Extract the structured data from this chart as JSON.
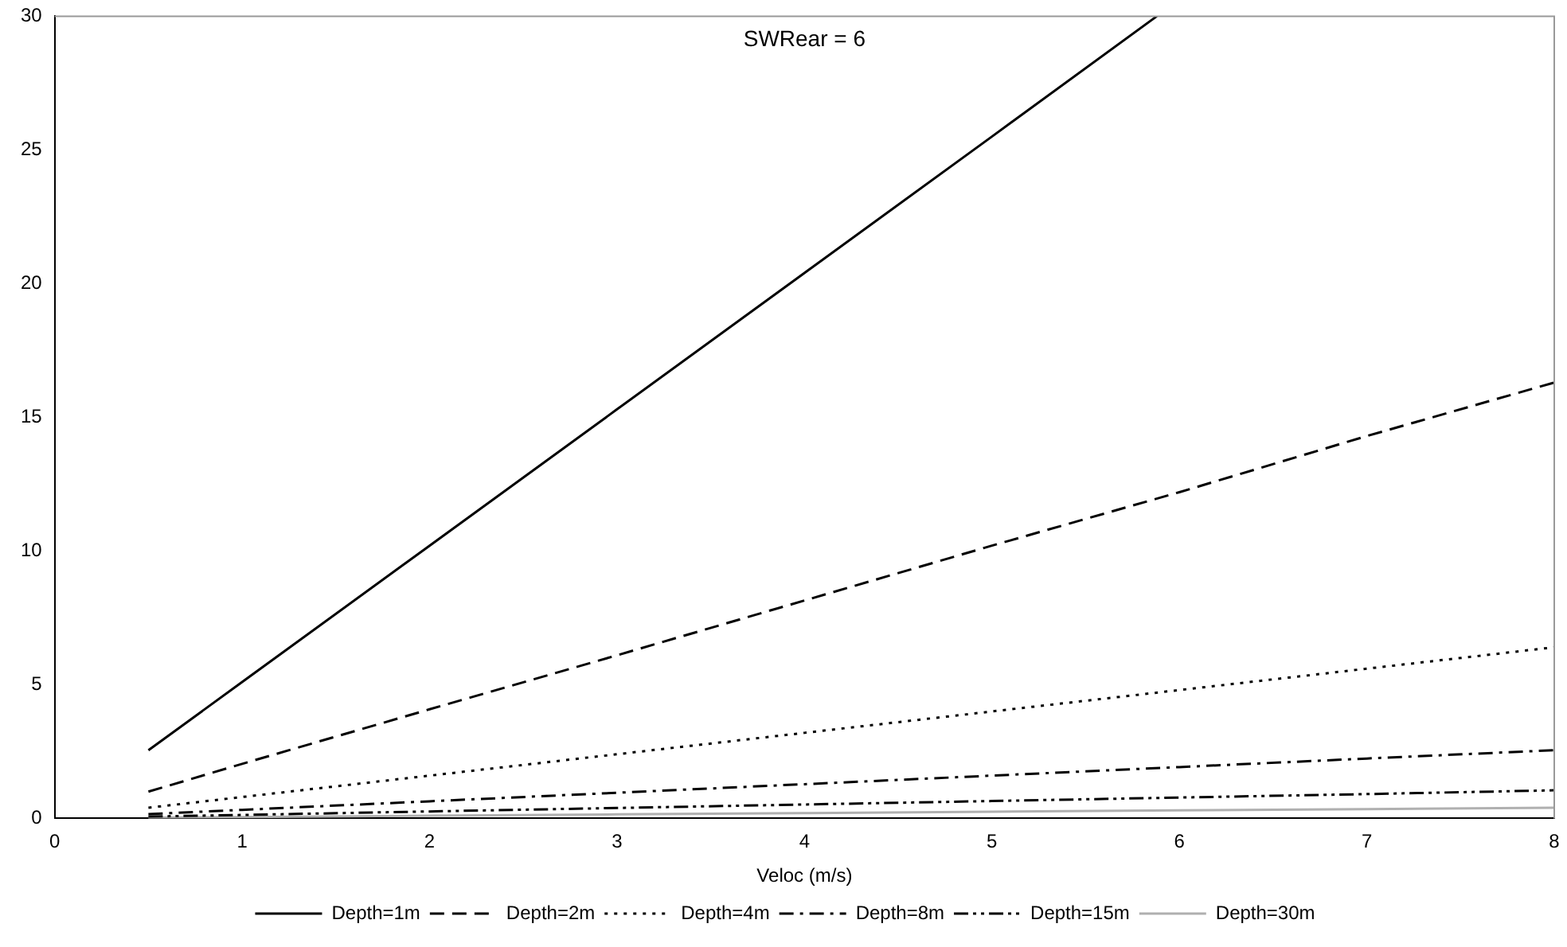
{
  "chart_data": {
    "type": "line",
    "title": "SWRear = 6",
    "xlabel": "Veloc (m/s)",
    "xlim": [
      0,
      8
    ],
    "xticks": [
      0,
      1,
      2,
      3,
      4,
      5,
      6,
      7,
      8
    ],
    "ylim": [
      0,
      30
    ],
    "yticks": [
      0,
      5,
      10,
      15,
      20,
      25,
      30
    ],
    "grid": false,
    "legend": "bottom",
    "marker": "none",
    "series": [
      {
        "name": "Depth=1m",
        "color": "#000000",
        "line_style": "solid",
        "x": [
          0.5,
          1,
          2,
          3,
          4,
          5,
          5.88
        ],
        "values": [
          2.55,
          5.1,
          10.2,
          15.3,
          20.4,
          25.5,
          30
        ]
      },
      {
        "name": "Depth=2m",
        "color": "#000000",
        "line_style": "dashed",
        "x": [
          0.5,
          1,
          2,
          3,
          4,
          5,
          6,
          7,
          8
        ],
        "values": [
          1.0,
          2.04,
          4.08,
          6.1,
          8.15,
          10.2,
          12.2,
          14.3,
          16.3
        ]
      },
      {
        "name": "Depth=4m",
        "color": "#000000",
        "line_style": "dotted",
        "x": [
          0.5,
          1,
          2,
          3,
          4,
          5,
          6,
          7,
          8
        ],
        "values": [
          0.4,
          0.8,
          1.6,
          2.4,
          3.2,
          4.0,
          4.8,
          5.6,
          6.4
        ]
      },
      {
        "name": "Depth=8m",
        "color": "#000000",
        "line_style": "dashdot",
        "x": [
          0.5,
          1,
          2,
          3,
          4,
          5,
          6,
          7,
          8
        ],
        "values": [
          0.16,
          0.32,
          0.64,
          0.96,
          1.28,
          1.6,
          1.92,
          2.24,
          2.55
        ]
      },
      {
        "name": "Depth=15m",
        "color": "#000000",
        "line_style": "dashdotdot",
        "x": [
          0.5,
          1,
          2,
          3,
          4,
          5,
          6,
          7,
          8
        ],
        "values": [
          0.07,
          0.13,
          0.26,
          0.39,
          0.52,
          0.65,
          0.78,
          0.91,
          1.05
        ]
      },
      {
        "name": "Depth=30m",
        "color": "#b0b0b0",
        "line_style": "solid",
        "x": [
          0.5,
          1,
          2,
          3,
          4,
          5,
          6,
          7,
          8
        ],
        "values": [
          0.03,
          0.05,
          0.1,
          0.15,
          0.2,
          0.25,
          0.3,
          0.35,
          0.4
        ]
      }
    ]
  }
}
